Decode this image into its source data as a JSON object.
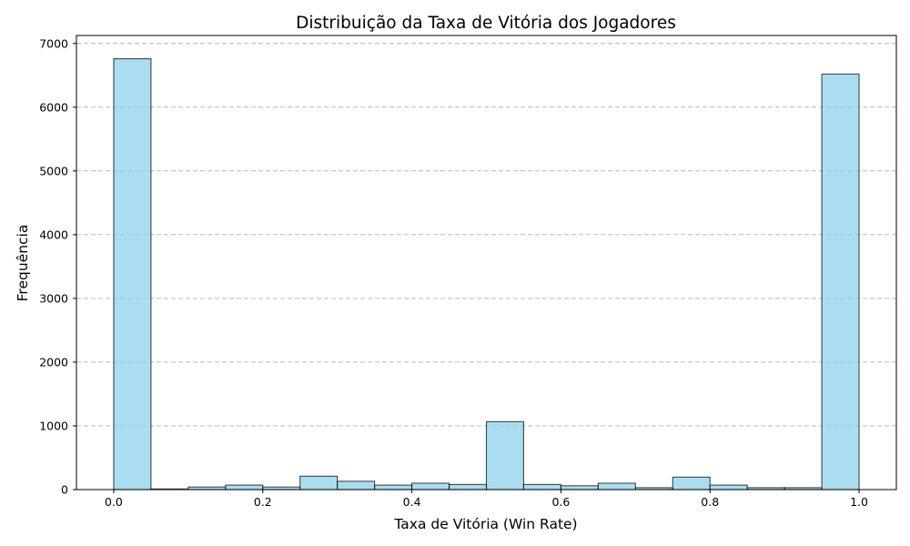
{
  "chart_data": {
    "type": "bar",
    "title": "Distribuição da Taxa de Vitória dos Jogadores",
    "xlabel": "Taxa de Vitória (Win Rate)",
    "ylabel": "Frequência",
    "xlim": [
      -0.05,
      1.05
    ],
    "ylim": [
      0,
      7125
    ],
    "xticks": [
      "0.0",
      "0.2",
      "0.4",
      "0.6",
      "0.8",
      "1.0"
    ],
    "xtick_values": [
      0.0,
      0.2,
      0.4,
      0.6,
      0.8,
      1.0
    ],
    "yticks": [
      "0",
      "1000",
      "2000",
      "3000",
      "4000",
      "5000",
      "6000",
      "7000"
    ],
    "ytick_values": [
      0,
      1000,
      2000,
      3000,
      4000,
      5000,
      6000,
      7000
    ],
    "bin_edges": [
      0.0,
      0.05,
      0.1,
      0.15,
      0.2,
      0.25,
      0.3,
      0.35,
      0.4,
      0.45,
      0.5,
      0.55,
      0.6,
      0.65,
      0.7,
      0.75,
      0.8,
      0.85,
      0.9,
      0.95,
      1.0
    ],
    "values": [
      6760,
      10,
      40,
      70,
      40,
      210,
      130,
      70,
      100,
      80,
      1065,
      80,
      60,
      100,
      30,
      195,
      70,
      30,
      30,
      6520
    ],
    "grid": "y-dashed",
    "colors": {
      "bar_fill": "#87ceeb",
      "bar_edge": "#000000",
      "grid": "#b0b0b0"
    }
  }
}
